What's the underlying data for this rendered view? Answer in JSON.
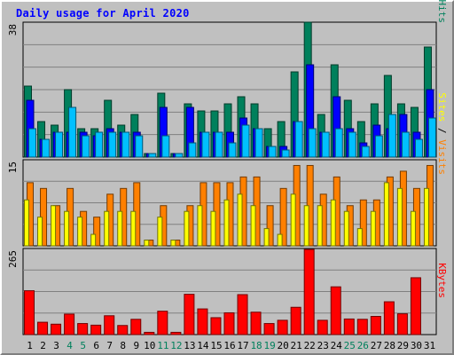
{
  "title": "Daily usage for April 2020",
  "colors": {
    "hits": "#00805c",
    "files": "#0000ff",
    "pages": "#00c0ff",
    "visits": "#ff8000",
    "sites": "#ffff00",
    "kbytes": "#ff0000",
    "weekend_label": "#00805c",
    "weekday_label": "#000000",
    "panel_bg": "#c0c0c0",
    "grid": "#808080"
  },
  "chart_data": [
    {
      "type": "bar",
      "panel": "hits-files-pages",
      "max_label": "38",
      "ylim": [
        0,
        38
      ],
      "legend": {
        "pages": "Pages",
        "sep1": " / ",
        "files": "Files",
        "sep2": " / ",
        "hits": "Hits"
      },
      "x": [
        1,
        2,
        3,
        4,
        5,
        6,
        7,
        8,
        9,
        10,
        11,
        12,
        13,
        14,
        15,
        16,
        17,
        18,
        19,
        20,
        21,
        22,
        23,
        24,
        25,
        26,
        27,
        28,
        29,
        30,
        31
      ],
      "series": [
        {
          "name": "Hits",
          "values": [
            20,
            10,
            9,
            19,
            8,
            8,
            16,
            9,
            12,
            1,
            18,
            1,
            15,
            13,
            13,
            15,
            17,
            15,
            8,
            10,
            24,
            38,
            12,
            26,
            16,
            10,
            15,
            23,
            15,
            14,
            31
          ]
        },
        {
          "name": "Files",
          "values": [
            16,
            5,
            7,
            7,
            7,
            6,
            8,
            7,
            7,
            1,
            14,
            1,
            14,
            7,
            7,
            7,
            11,
            8,
            3,
            3,
            10,
            26,
            7,
            17,
            8,
            4,
            9,
            8,
            12,
            7,
            19
          ]
        },
        {
          "name": "Pages",
          "values": [
            8,
            5,
            7,
            14,
            6,
            7,
            7,
            7,
            6,
            1,
            6,
            1,
            4,
            7,
            7,
            4,
            9,
            8,
            3,
            2,
            10,
            8,
            7,
            8,
            7,
            3,
            6,
            12,
            7,
            5,
            11
          ]
        }
      ]
    },
    {
      "type": "bar",
      "panel": "visits-sites",
      "max_label": "15",
      "ylim": [
        0,
        15
      ],
      "legend": {
        "sites": "Sites",
        "sep": " / ",
        "visits": "Visits"
      },
      "x": [
        1,
        2,
        3,
        4,
        5,
        6,
        7,
        8,
        9,
        10,
        11,
        12,
        13,
        14,
        15,
        16,
        17,
        18,
        19,
        20,
        21,
        22,
        23,
        24,
        25,
        26,
        27,
        28,
        29,
        30,
        31
      ],
      "series": [
        {
          "name": "Visits",
          "values": [
            11,
            10,
            7,
            10,
            6,
            5,
            9,
            10,
            11,
            1,
            7,
            1,
            7,
            11,
            11,
            11,
            12,
            12,
            7,
            10,
            14,
            14,
            9,
            12,
            7,
            8,
            8,
            12,
            13,
            10,
            14
          ]
        },
        {
          "name": "Sites",
          "values": [
            8,
            5,
            7,
            6,
            5,
            2,
            6,
            6,
            6,
            1,
            5,
            1,
            6,
            7,
            6,
            8,
            9,
            7,
            3,
            2,
            9,
            7,
            7,
            8,
            6,
            3,
            6,
            11,
            10,
            6,
            10
          ]
        }
      ]
    },
    {
      "type": "bar",
      "panel": "kbytes",
      "max_label": "265",
      "ylim": [
        0,
        265
      ],
      "legend": {
        "kbytes": "KBytes"
      },
      "x": [
        1,
        2,
        3,
        4,
        5,
        6,
        7,
        8,
        9,
        10,
        11,
        12,
        13,
        14,
        15,
        16,
        17,
        18,
        19,
        20,
        21,
        22,
        23,
        24,
        25,
        26,
        27,
        28,
        29,
        30,
        31
      ],
      "xticks": [
        "1",
        "2",
        "3",
        "4",
        "5",
        "6",
        "7",
        "8",
        "9",
        "10",
        "11",
        "12",
        "13",
        "14",
        "15",
        "16",
        "17",
        "18",
        "19",
        "20",
        "21",
        "22",
        "23",
        "24",
        "25",
        "26",
        "27",
        "28",
        "29",
        "30",
        "31"
      ],
      "weekend_days": [
        4,
        5,
        11,
        12,
        18,
        19,
        25,
        26
      ],
      "series": [
        {
          "name": "KBytes",
          "values": [
            135,
            38,
            32,
            63,
            34,
            29,
            58,
            28,
            47,
            7,
            72,
            7,
            124,
            79,
            52,
            67,
            123,
            69,
            34,
            44,
            84,
            262,
            44,
            147,
            48,
            47,
            56,
            101,
            64,
            175,
            0
          ]
        }
      ]
    }
  ]
}
